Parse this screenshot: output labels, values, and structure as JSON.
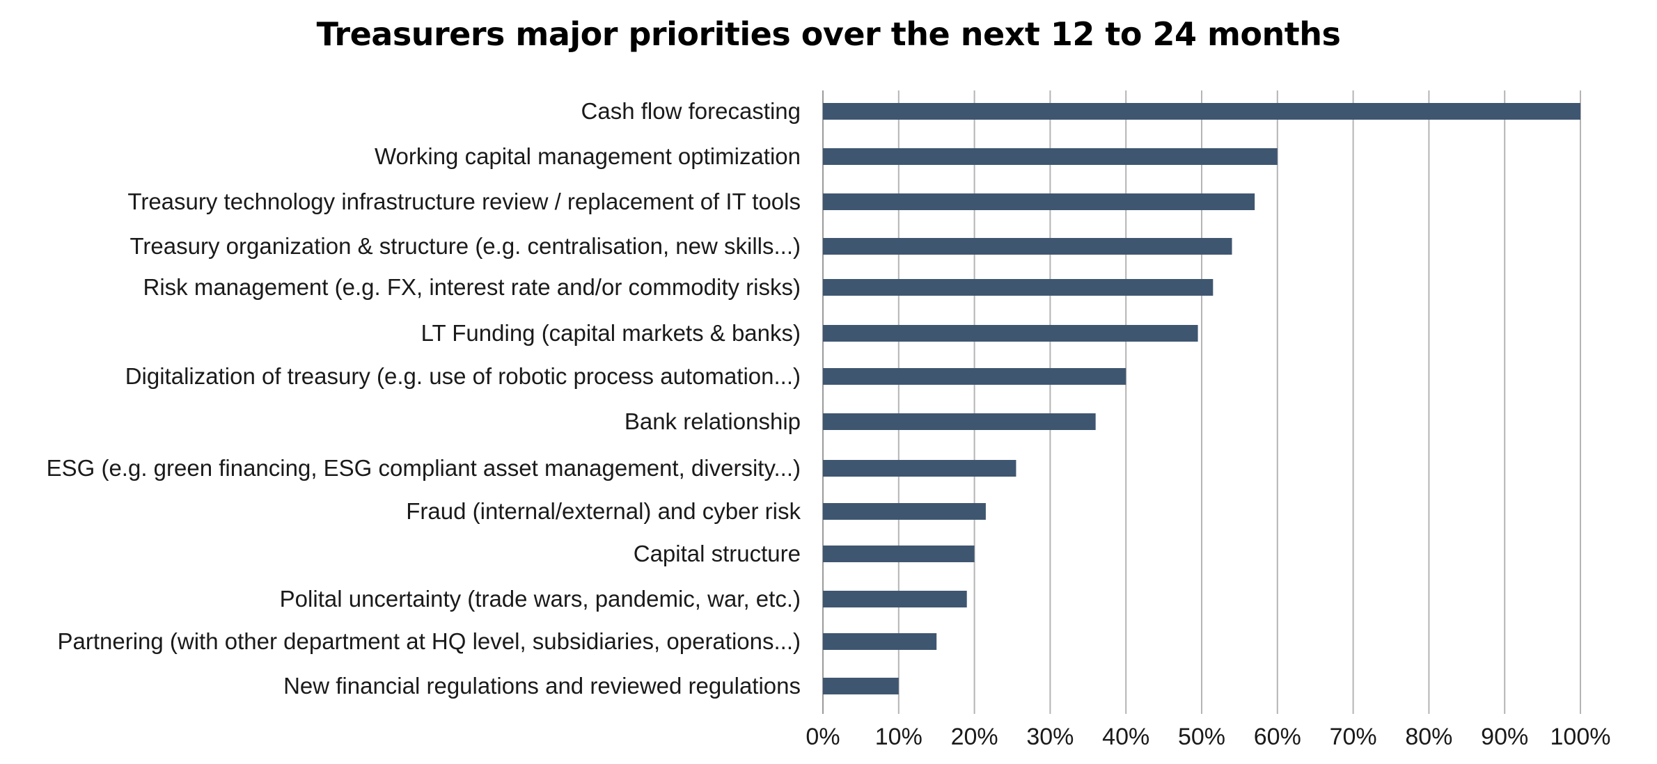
{
  "chart_data": {
    "type": "bar",
    "orientation": "horizontal",
    "title": "Treasurers major priorities over the next 12 to 24 months",
    "xlabel": "",
    "ylabel": "",
    "xlim": [
      0,
      100
    ],
    "unit": "%",
    "grid": "vertical",
    "bar_color": "#3f5670",
    "categories": [
      "Cash flow forecasting",
      "Working capital management optimization",
      "Treasury technology infrastructure review / replacement of IT tools",
      "Treasury organization & structure (e.g. centralisation, new skills...)",
      "Risk management (e.g. FX, interest rate and/or commodity risks)",
      "LT Funding (capital markets & banks)",
      "Digitalization of treasury (e.g. use of robotic process automation...)",
      "Bank relationship",
      "ESG (e.g. green financing, ESG compliant asset management, diversity...)",
      "Fraud (internal/external) and cyber risk",
      "Capital structure",
      "Polital uncertainty (trade wars, pandemic, war, etc.)",
      "Partnering (with other department at HQ  level, subsidiaries, operations...)",
      "New financial regulations and reviewed regulations"
    ],
    "values": [
      100,
      60,
      57,
      54,
      51.5,
      49.5,
      40,
      36,
      25.5,
      21.5,
      20,
      19,
      15,
      10
    ],
    "ticks": [
      "0%",
      "10%",
      "20%",
      "30%",
      "40%",
      "50%",
      "60%",
      "70%",
      "80%",
      "90%",
      "100%"
    ]
  }
}
